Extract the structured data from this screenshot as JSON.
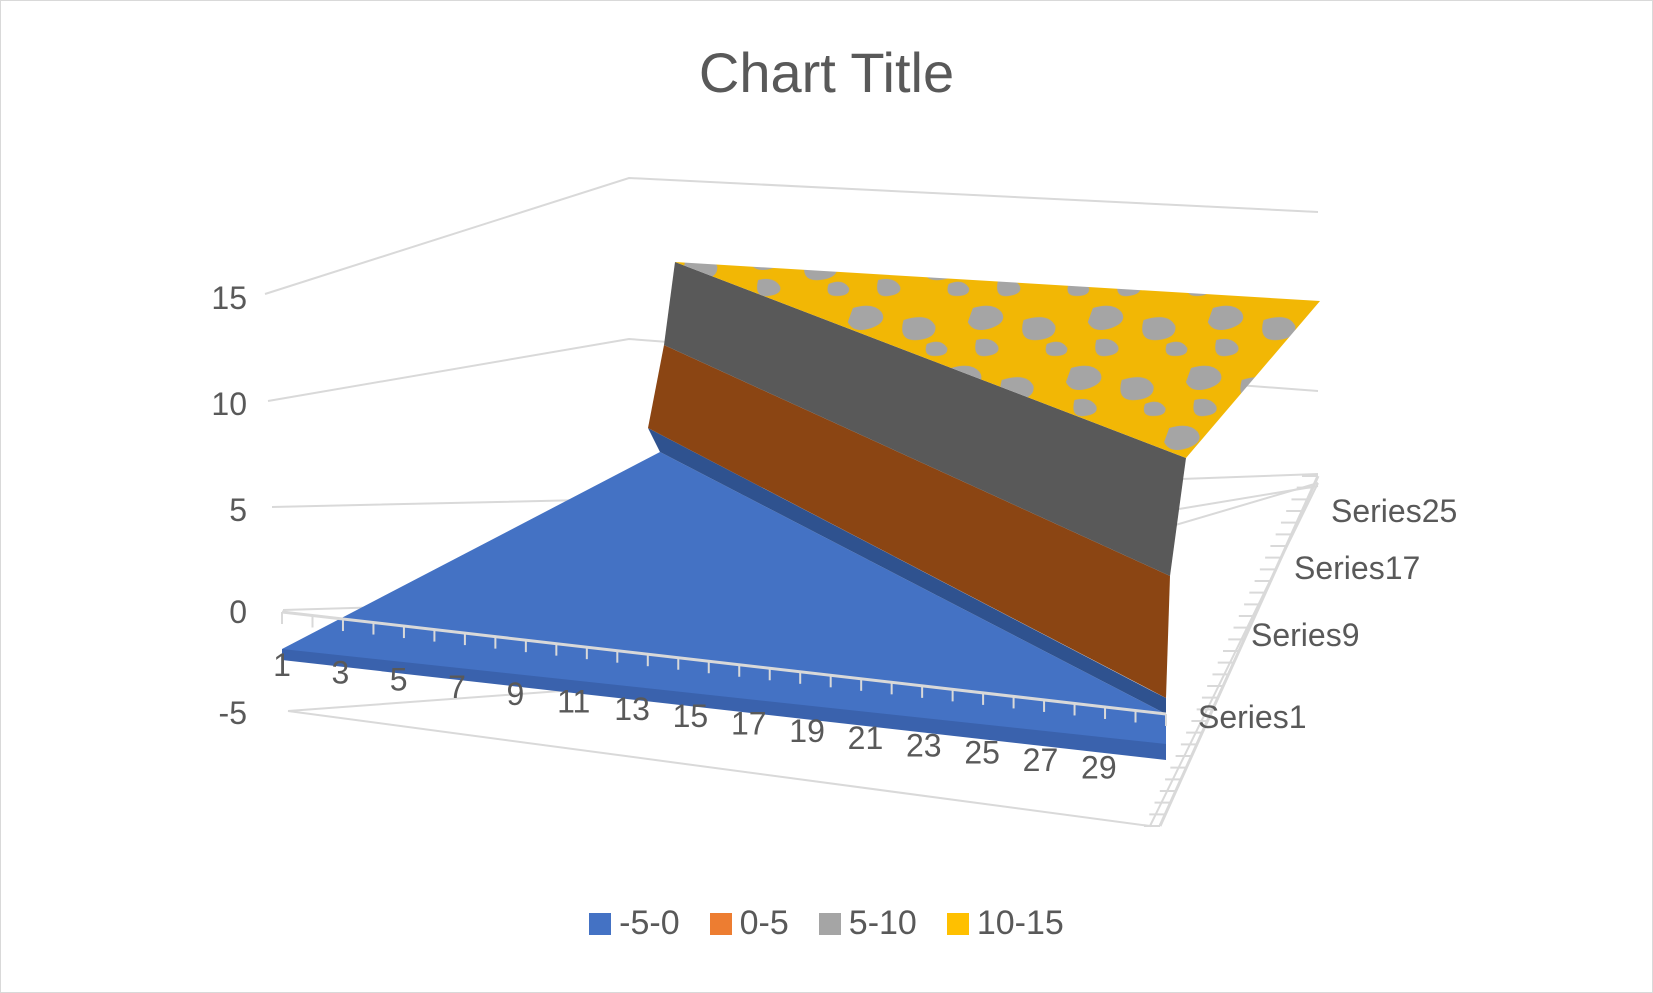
{
  "chart_data": {
    "type": "surface",
    "title": "Chart Title",
    "z_ticks": [
      "15",
      "10",
      "5",
      "0",
      "-5"
    ],
    "zlim": [
      -5,
      15
    ],
    "x_ticks": [
      "1",
      "3",
      "5",
      "7",
      "9",
      "11",
      "13",
      "15",
      "17",
      "19",
      "21",
      "23",
      "25",
      "27",
      "29"
    ],
    "x_range": [
      1,
      30
    ],
    "y_ticks": [
      "Series25",
      "Series17",
      "Series9",
      "Series1"
    ],
    "y_series_count": 31,
    "surface_shape": "step: value about -1 before the diagonal where x is roughly equal to the series index, rising to a noisy plateau of about 12 (10-15 mixed with 5-10 bands) beyond it",
    "legend": [
      {
        "label": "-5-0",
        "color": "#4472C4"
      },
      {
        "label": "0-5",
        "color": "#ED7D31"
      },
      {
        "label": "5-10",
        "color": "#A5A5A5"
      },
      {
        "label": "10-15",
        "color": "#FFC000"
      }
    ],
    "grid": true,
    "legend_position": "bottom"
  }
}
